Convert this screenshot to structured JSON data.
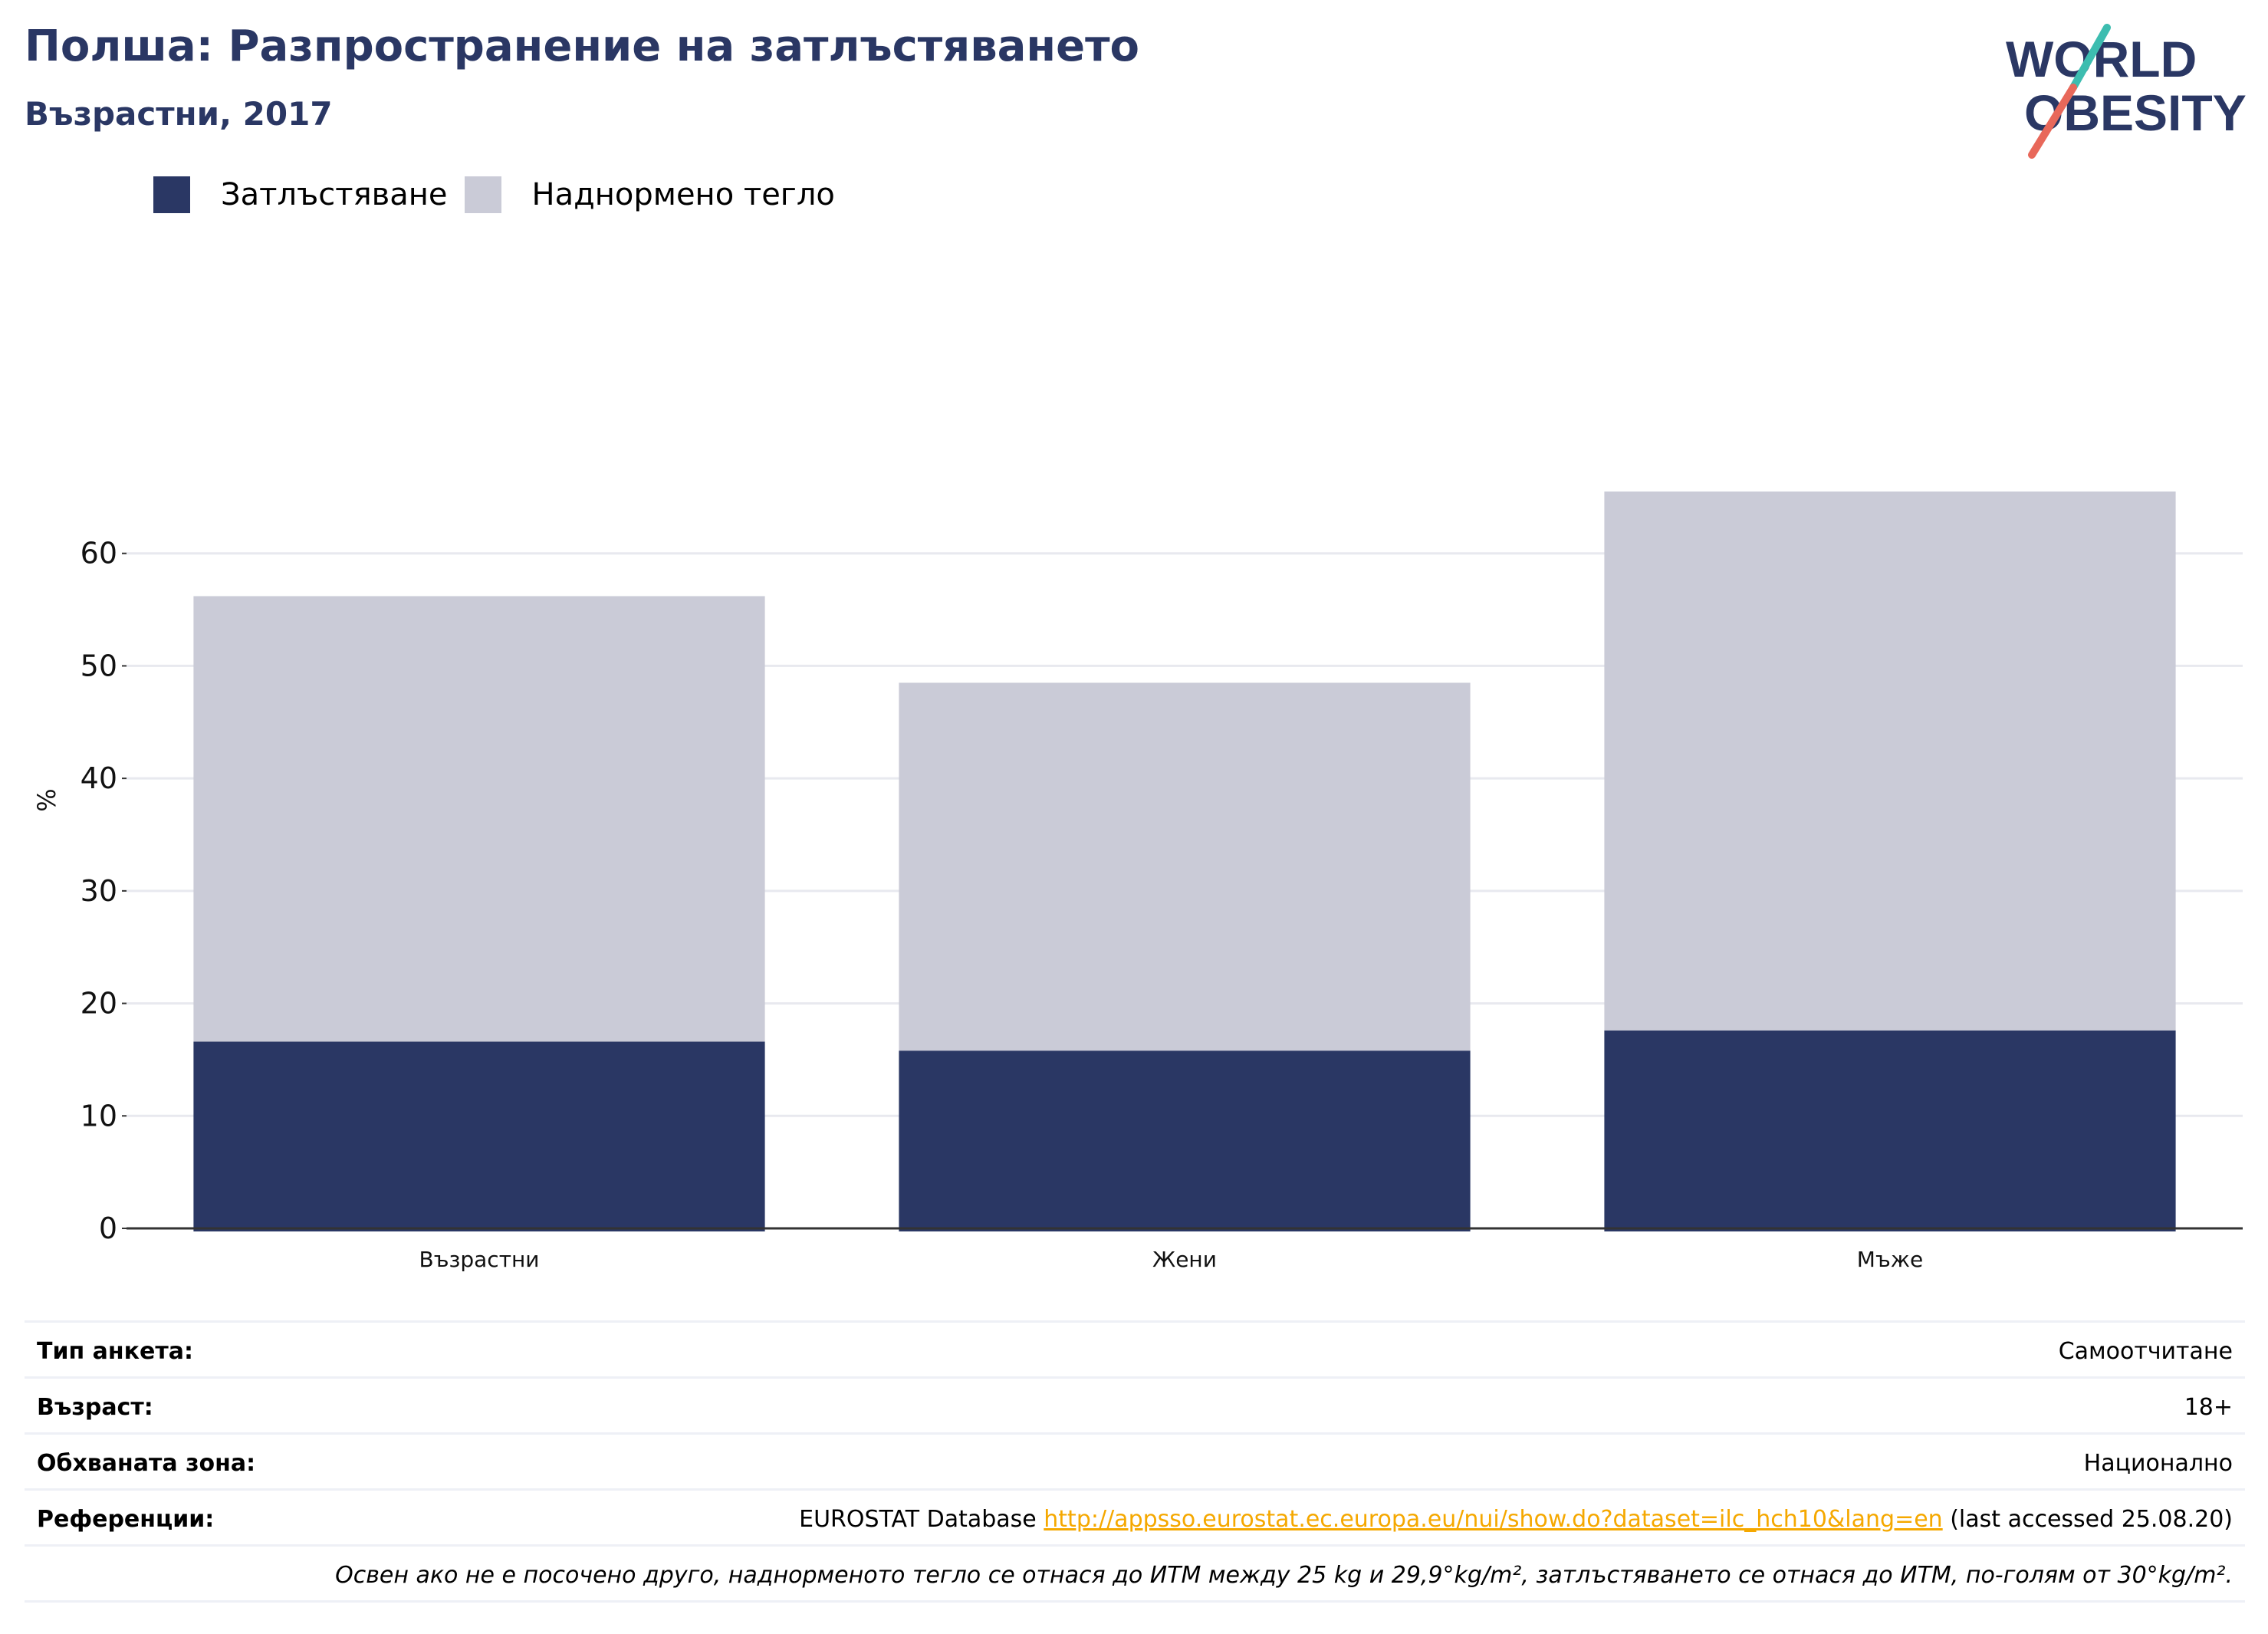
{
  "header": {
    "title": "Полша: Разпространение на затлъстяването",
    "subtitle": "Възрастни, 2017"
  },
  "logo": {
    "word1": "WORLD",
    "word2": "OBESITY",
    "colors": {
      "text": "#2a3764",
      "slash_top": "#3dbdb0",
      "slash_bottom": "#e8685a"
    }
  },
  "legend": [
    {
      "label": "Затлъстяване",
      "color": "#2a3764"
    },
    {
      "label": "Наднормено тегло",
      "color": "#cacbd7"
    }
  ],
  "chart_data": {
    "type": "bar",
    "stacked": true,
    "categories": [
      "Възрастни",
      "Жени",
      "Мъже"
    ],
    "series": [
      {
        "name": "Затлъстяване",
        "values": [
          16.6,
          15.8,
          17.6
        ],
        "color": "#2a3764"
      },
      {
        "name": "Наднормено тегло",
        "values": [
          39.6,
          32.7,
          47.9
        ],
        "color": "#cacbd7"
      }
    ],
    "ylabel": "%",
    "ylim": [
      0,
      70
    ],
    "yticks": [
      0,
      10,
      20,
      30,
      40,
      50,
      60
    ],
    "grid": true,
    "legend_position": "top-left"
  },
  "meta": {
    "survey_type": {
      "label": "Тип анкета:",
      "value": "Самоотчитане"
    },
    "age": {
      "label": "Възраст:",
      "value": "18+"
    },
    "area": {
      "label": "Обхваната зона:",
      "value": "Национално"
    },
    "references": {
      "label": "Референции:",
      "prefix": "EUROSTAT Database ",
      "link": "http://appsso.eurostat.ec.europa.eu/nui/show.do?dataset=ilc_hch10&lang=en",
      "suffix": " (last accessed 25.08.20)"
    },
    "note": "Освен ако не е посочено друго, наднорменото тегло се отнася до ИТМ между 25 kg и 29,9°kg/m², затлъстяването се отнася до ИТМ, по-голям от 30°kg/m²."
  }
}
